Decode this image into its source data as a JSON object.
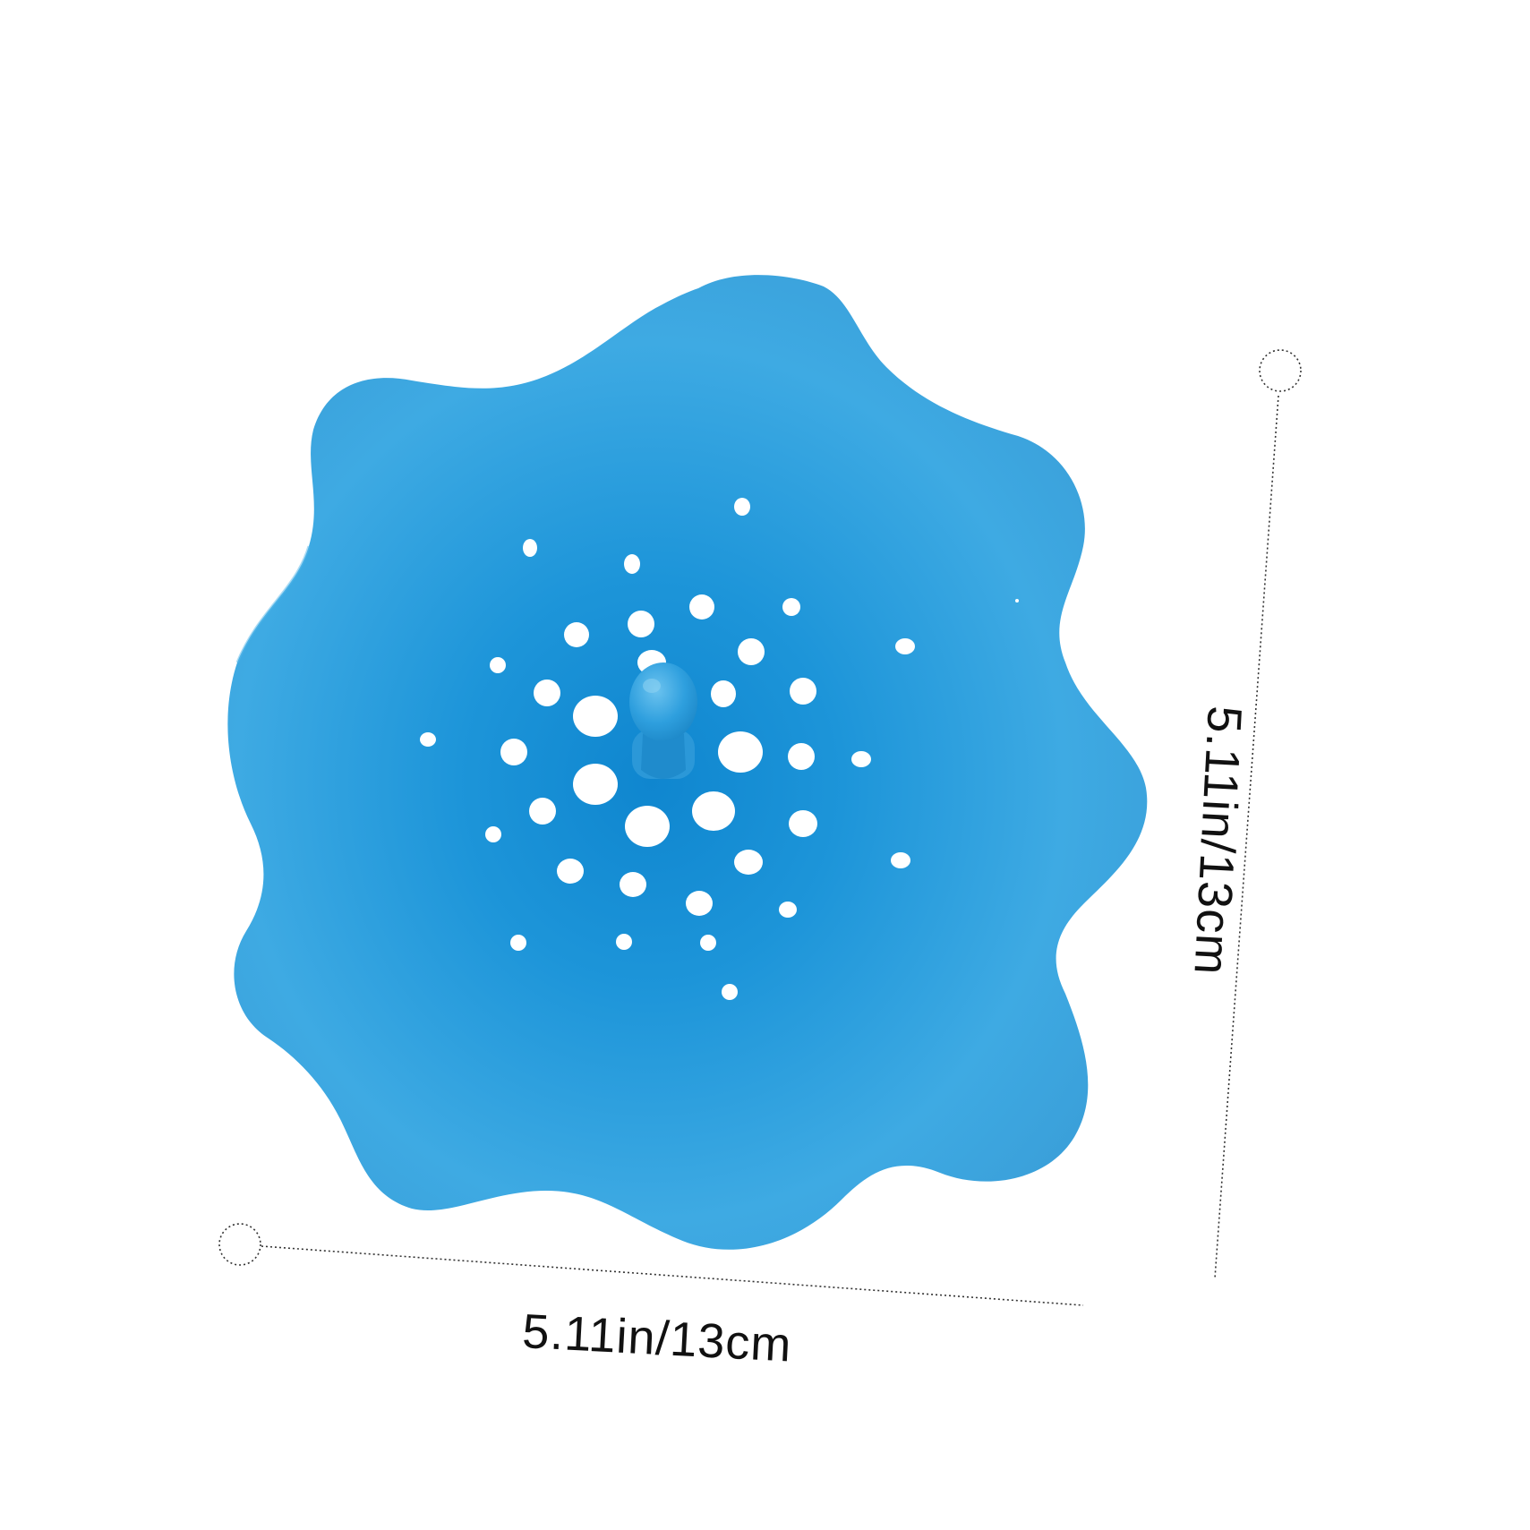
{
  "product": {
    "name_icon": "flower-sink-strainer-icon",
    "color": "#2aa1e0",
    "color_dark": "#1a86c9"
  },
  "dimensions": {
    "width_label": "5.11in/13cm",
    "height_label": "5.11in/13cm"
  }
}
